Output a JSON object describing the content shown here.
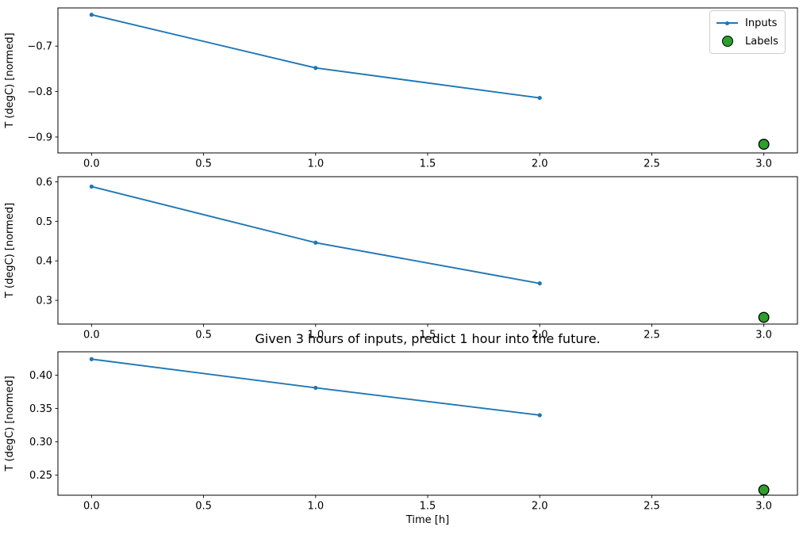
{
  "figure": {
    "title": "Given 3 hours of inputs, predict 1 hour into the future.",
    "xlabel": "Time [h]",
    "background_color": "#ffffff",
    "spine_color": "#000000",
    "legend": {
      "position": "top-right",
      "items": [
        {
          "label": "Inputs",
          "marker": "line-with-dot",
          "color": "#1f77b4"
        },
        {
          "label": "Labels",
          "marker": "circle",
          "color": "#2ca02c",
          "edge_color": "#000000"
        }
      ]
    }
  },
  "chart_data": [
    {
      "type": "line",
      "subplot": 1,
      "title": "",
      "xlabel": "",
      "ylabel": "T (degC) [normed]",
      "grid": false,
      "xlim": [
        -0.15,
        3.15
      ],
      "ylim": [
        -0.935,
        -0.616
      ],
      "xticks": [
        0,
        0.5,
        1,
        1.5,
        2,
        2.5,
        3
      ],
      "xtick_labels": [
        "0.0",
        "0.5",
        "1.0",
        "1.5",
        "2.0",
        "2.5",
        "3.0"
      ],
      "yticks": [
        -0.7,
        -0.8,
        -0.9
      ],
      "ytick_labels": [
        "−0.7",
        "−0.8",
        "−0.9"
      ],
      "series": [
        {
          "name": "Inputs",
          "kind": "line",
          "color": "#1f77b4",
          "marker": "dot",
          "x": [
            0,
            1,
            2
          ],
          "y": [
            -0.631,
            -0.748,
            -0.814
          ]
        },
        {
          "name": "Labels",
          "kind": "scatter",
          "color": "#2ca02c",
          "edge_color": "#000000",
          "x": [
            3
          ],
          "y": [
            -0.916
          ]
        }
      ]
    },
    {
      "type": "line",
      "subplot": 2,
      "title": "",
      "xlabel": "",
      "ylabel": "T (degC) [normed]",
      "grid": false,
      "xlim": [
        -0.15,
        3.15
      ],
      "ylim": [
        0.24,
        0.613
      ],
      "xticks": [
        0,
        0.5,
        1,
        1.5,
        2,
        2.5,
        3
      ],
      "xtick_labels": [
        "0.0",
        "0.5",
        "1.0",
        "1.5",
        "2.0",
        "2.5",
        "3.0"
      ],
      "yticks": [
        0.3,
        0.4,
        0.5,
        0.6
      ],
      "ytick_labels": [
        "0.3",
        "0.4",
        "0.5",
        "0.6"
      ],
      "series": [
        {
          "name": "Inputs",
          "kind": "line",
          "color": "#1f77b4",
          "marker": "dot",
          "x": [
            0,
            1,
            2
          ],
          "y": [
            0.588,
            0.446,
            0.343
          ]
        },
        {
          "name": "Labels",
          "kind": "scatter",
          "color": "#2ca02c",
          "edge_color": "#000000",
          "x": [
            3
          ],
          "y": [
            0.257
          ]
        }
      ]
    },
    {
      "type": "line",
      "subplot": 3,
      "title": "Given 3 hours of inputs, predict 1 hour into the future.",
      "xlabel": "Time [h]",
      "ylabel": "T (degC) [normed]",
      "grid": false,
      "xlim": [
        -0.15,
        3.15
      ],
      "ylim": [
        0.22,
        0.435
      ],
      "xticks": [
        0,
        0.5,
        1,
        1.5,
        2,
        2.5,
        3
      ],
      "xtick_labels": [
        "0.0",
        "0.5",
        "1.0",
        "1.5",
        "2.0",
        "2.5",
        "3.0"
      ],
      "yticks": [
        0.25,
        0.3,
        0.35,
        0.4
      ],
      "ytick_labels": [
        "0.25",
        "0.30",
        "0.35",
        "0.40"
      ],
      "series": [
        {
          "name": "Inputs",
          "kind": "line",
          "color": "#1f77b4",
          "marker": "dot",
          "x": [
            0,
            1,
            2
          ],
          "y": [
            0.424,
            0.381,
            0.34
          ]
        },
        {
          "name": "Labels",
          "kind": "scatter",
          "color": "#2ca02c",
          "edge_color": "#000000",
          "x": [
            3
          ],
          "y": [
            0.228
          ]
        }
      ]
    }
  ]
}
